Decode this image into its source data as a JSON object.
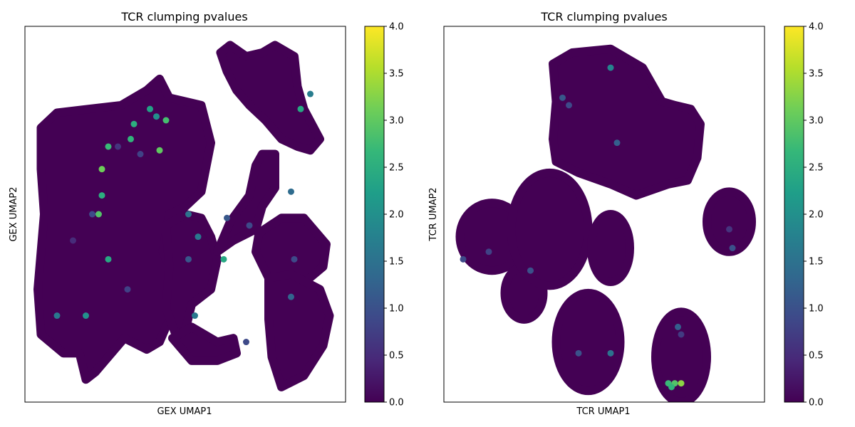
{
  "figure": {
    "background": "#ffffff"
  },
  "colormap": {
    "name": "viridis",
    "stops": [
      "#440154",
      "#482878",
      "#3e4989",
      "#31688e",
      "#26828e",
      "#1f9e89",
      "#35b779",
      "#6ece58",
      "#b5de2b",
      "#fde725"
    ]
  },
  "chart_data": [
    {
      "type": "scatter",
      "title": "TCR clumping pvalues",
      "xlabel": "GEX UMAP1",
      "ylabel": "GEX UMAP2",
      "grid": false,
      "xticks": "none",
      "yticks": "none",
      "colorbar": {
        "min": 0.0,
        "max": 4.0,
        "ticks": [
          "0.0",
          "0.5",
          "1.0",
          "1.5",
          "2.0",
          "2.5",
          "3.0",
          "3.5",
          "4.0"
        ]
      },
      "background_value": 0.0,
      "clusters": [
        {
          "shape": "poly",
          "value": 0.0,
          "points": [
            [
              0.05,
              0.73
            ],
            [
              0.1,
              0.77
            ],
            [
              0.3,
              0.79
            ],
            [
              0.38,
              0.83
            ],
            [
              0.42,
              0.86
            ],
            [
              0.45,
              0.81
            ],
            [
              0.55,
              0.79
            ],
            [
              0.58,
              0.69
            ],
            [
              0.55,
              0.56
            ],
            [
              0.5,
              0.52
            ],
            [
              0.45,
              0.5
            ],
            [
              0.43,
              0.4
            ],
            [
              0.48,
              0.31
            ],
            [
              0.5,
              0.28
            ],
            [
              0.47,
              0.25
            ],
            [
              0.44,
              0.2
            ],
            [
              0.42,
              0.16
            ],
            [
              0.38,
              0.14
            ],
            [
              0.31,
              0.17
            ],
            [
              0.25,
              0.11
            ],
            [
              0.22,
              0.08
            ],
            [
              0.19,
              0.06
            ],
            [
              0.17,
              0.13
            ],
            [
              0.12,
              0.13
            ],
            [
              0.05,
              0.18
            ],
            [
              0.04,
              0.3
            ],
            [
              0.06,
              0.5
            ],
            [
              0.05,
              0.62
            ]
          ]
        },
        {
          "shape": "poly",
          "value": 0.0,
          "points": [
            [
              0.44,
              0.47
            ],
            [
              0.5,
              0.5
            ],
            [
              0.55,
              0.49
            ],
            [
              0.58,
              0.44
            ],
            [
              0.6,
              0.38
            ],
            [
              0.58,
              0.3
            ],
            [
              0.52,
              0.26
            ],
            [
              0.5,
              0.19
            ],
            [
              0.47,
              0.18
            ],
            [
              0.44,
              0.25
            ],
            [
              0.45,
              0.36
            ]
          ]
        },
        {
          "shape": "poly",
          "value": 0.0,
          "points": [
            [
              0.46,
              0.17
            ],
            [
              0.52,
              0.2
            ],
            [
              0.6,
              0.16
            ],
            [
              0.65,
              0.17
            ],
            [
              0.66,
              0.13
            ],
            [
              0.6,
              0.11
            ],
            [
              0.52,
              0.11
            ]
          ]
        },
        {
          "shape": "poly",
          "value": 0.0,
          "points": [
            [
              0.61,
              0.93
            ],
            [
              0.64,
              0.95
            ],
            [
              0.69,
              0.92
            ],
            [
              0.74,
              0.93
            ],
            [
              0.78,
              0.95
            ],
            [
              0.84,
              0.92
            ],
            [
              0.85,
              0.84
            ],
            [
              0.87,
              0.78
            ],
            [
              0.92,
              0.7
            ],
            [
              0.89,
              0.67
            ],
            [
              0.85,
              0.68
            ],
            [
              0.8,
              0.7
            ],
            [
              0.75,
              0.75
            ],
            [
              0.7,
              0.79
            ],
            [
              0.66,
              0.83
            ],
            [
              0.63,
              0.88
            ]
          ]
        },
        {
          "shape": "poly",
          "value": 0.0,
          "points": [
            [
              0.74,
              0.66
            ],
            [
              0.78,
              0.66
            ],
            [
              0.78,
              0.57
            ],
            [
              0.74,
              0.52
            ],
            [
              0.72,
              0.46
            ],
            [
              0.65,
              0.43
            ],
            [
              0.6,
              0.4
            ],
            [
              0.64,
              0.48
            ],
            [
              0.7,
              0.55
            ],
            [
              0.72,
              0.63
            ]
          ]
        },
        {
          "shape": "poly",
          "value": 0.0,
          "points": [
            [
              0.73,
              0.45
            ],
            [
              0.8,
              0.49
            ],
            [
              0.87,
              0.49
            ],
            [
              0.94,
              0.42
            ],
            [
              0.93,
              0.36
            ],
            [
              0.86,
              0.31
            ],
            [
              0.76,
              0.33
            ],
            [
              0.72,
              0.4
            ]
          ]
        },
        {
          "shape": "poly",
          "value": 0.0,
          "points": [
            [
              0.76,
              0.33
            ],
            [
              0.83,
              0.34
            ],
            [
              0.92,
              0.3
            ],
            [
              0.95,
              0.23
            ],
            [
              0.93,
              0.15
            ],
            [
              0.87,
              0.07
            ],
            [
              0.8,
              0.04
            ],
            [
              0.77,
              0.12
            ],
            [
              0.76,
              0.22
            ]
          ]
        }
      ],
      "highlights": [
        {
          "x": 0.19,
          "y": 0.23,
          "value": 2.0
        },
        {
          "x": 0.23,
          "y": 0.5,
          "value": 2.9
        },
        {
          "x": 0.24,
          "y": 0.62,
          "value": 3.1
        },
        {
          "x": 0.26,
          "y": 0.68,
          "value": 2.7
        },
        {
          "x": 0.24,
          "y": 0.55,
          "value": 2.5
        },
        {
          "x": 0.33,
          "y": 0.7,
          "value": 2.6
        },
        {
          "x": 0.34,
          "y": 0.74,
          "value": 2.5
        },
        {
          "x": 0.39,
          "y": 0.78,
          "value": 2.3
        },
        {
          "x": 0.41,
          "y": 0.76,
          "value": 2.0
        },
        {
          "x": 0.42,
          "y": 0.67,
          "value": 3.0
        },
        {
          "x": 0.44,
          "y": 0.75,
          "value": 2.8
        },
        {
          "x": 0.36,
          "y": 0.66,
          "value": 0.8
        },
        {
          "x": 0.29,
          "y": 0.68,
          "value": 0.6
        },
        {
          "x": 0.21,
          "y": 0.5,
          "value": 0.9
        },
        {
          "x": 0.15,
          "y": 0.43,
          "value": 0.5
        },
        {
          "x": 0.32,
          "y": 0.3,
          "value": 0.8
        },
        {
          "x": 0.26,
          "y": 0.38,
          "value": 2.4
        },
        {
          "x": 0.51,
          "y": 0.5,
          "value": 1.5
        },
        {
          "x": 0.54,
          "y": 0.44,
          "value": 1.6
        },
        {
          "x": 0.51,
          "y": 0.38,
          "value": 1.1
        },
        {
          "x": 0.62,
          "y": 0.38,
          "value": 2.4
        },
        {
          "x": 0.63,
          "y": 0.49,
          "value": 1.1
        },
        {
          "x": 0.7,
          "y": 0.47,
          "value": 0.9
        },
        {
          "x": 0.83,
          "y": 0.56,
          "value": 1.4
        },
        {
          "x": 0.86,
          "y": 0.78,
          "value": 2.4
        },
        {
          "x": 0.89,
          "y": 0.82,
          "value": 1.7
        },
        {
          "x": 0.84,
          "y": 0.38,
          "value": 0.9
        },
        {
          "x": 0.83,
          "y": 0.28,
          "value": 1.3
        },
        {
          "x": 0.1,
          "y": 0.23,
          "value": 1.6
        },
        {
          "x": 0.53,
          "y": 0.23,
          "value": 1.6
        },
        {
          "x": 0.69,
          "y": 0.16,
          "value": 0.9
        }
      ]
    },
    {
      "type": "scatter",
      "title": "TCR clumping pvalues",
      "xlabel": "TCR UMAP1",
      "ylabel": "TCR UMAP2",
      "grid": false,
      "xticks": "none",
      "yticks": "none",
      "colorbar": {
        "min": 0.0,
        "max": 4.0,
        "ticks": [
          "0.0",
          "0.5",
          "1.0",
          "1.5",
          "2.0",
          "2.5",
          "3.0",
          "3.5",
          "4.0"
        ]
      },
      "background_value": 0.0,
      "clusters": [
        {
          "shape": "poly",
          "value": 0.0,
          "points": [
            [
              0.34,
              0.9
            ],
            [
              0.4,
              0.93
            ],
            [
              0.52,
              0.94
            ],
            [
              0.62,
              0.89
            ],
            [
              0.68,
              0.8
            ],
            [
              0.72,
              0.79
            ],
            [
              0.77,
              0.78
            ],
            [
              0.8,
              0.74
            ],
            [
              0.79,
              0.65
            ],
            [
              0.76,
              0.59
            ],
            [
              0.7,
              0.58
            ],
            [
              0.6,
              0.55
            ],
            [
              0.52,
              0.58
            ],
            [
              0.42,
              0.61
            ],
            [
              0.35,
              0.64
            ],
            [
              0.34,
              0.7
            ],
            [
              0.35,
              0.8
            ]
          ]
        },
        {
          "shape": "ell",
          "value": 0.0,
          "cx": 0.15,
          "cy": 0.44,
          "rx": 0.1,
          "ry": 0.09
        },
        {
          "shape": "ell",
          "value": 0.0,
          "cx": 0.25,
          "cy": 0.29,
          "rx": 0.06,
          "ry": 0.07
        },
        {
          "shape": "ell",
          "value": 0.0,
          "cx": 0.33,
          "cy": 0.46,
          "rx": 0.12,
          "ry": 0.15
        },
        {
          "shape": "ell",
          "value": 0.0,
          "cx": 0.52,
          "cy": 0.41,
          "rx": 0.06,
          "ry": 0.09
        },
        {
          "shape": "ell",
          "value": 0.0,
          "cx": 0.45,
          "cy": 0.16,
          "rx": 0.1,
          "ry": 0.13
        },
        {
          "shape": "ell",
          "value": 0.0,
          "cx": 0.74,
          "cy": 0.12,
          "rx": 0.08,
          "ry": 0.12
        },
        {
          "shape": "ell",
          "value": 0.0,
          "cx": 0.89,
          "cy": 0.48,
          "rx": 0.07,
          "ry": 0.08
        }
      ],
      "highlights": [
        {
          "x": 0.52,
          "y": 0.89,
          "value": 1.8
        },
        {
          "x": 0.37,
          "y": 0.81,
          "value": 1.1
        },
        {
          "x": 0.39,
          "y": 0.79,
          "value": 0.9
        },
        {
          "x": 0.54,
          "y": 0.69,
          "value": 1.2
        },
        {
          "x": 0.06,
          "y": 0.38,
          "value": 0.9
        },
        {
          "x": 0.14,
          "y": 0.4,
          "value": 0.8
        },
        {
          "x": 0.27,
          "y": 0.35,
          "value": 1.0
        },
        {
          "x": 0.42,
          "y": 0.13,
          "value": 1.0
        },
        {
          "x": 0.52,
          "y": 0.13,
          "value": 1.5
        },
        {
          "x": 0.7,
          "y": 0.05,
          "value": 2.7
        },
        {
          "x": 0.72,
          "y": 0.05,
          "value": 2.9
        },
        {
          "x": 0.74,
          "y": 0.05,
          "value": 3.3
        },
        {
          "x": 0.71,
          "y": 0.04,
          "value": 2.6
        },
        {
          "x": 0.73,
          "y": 0.2,
          "value": 1.2
        },
        {
          "x": 0.74,
          "y": 0.18,
          "value": 0.7
        },
        {
          "x": 0.89,
          "y": 0.46,
          "value": 0.6
        },
        {
          "x": 0.9,
          "y": 0.41,
          "value": 1.0
        }
      ]
    }
  ]
}
